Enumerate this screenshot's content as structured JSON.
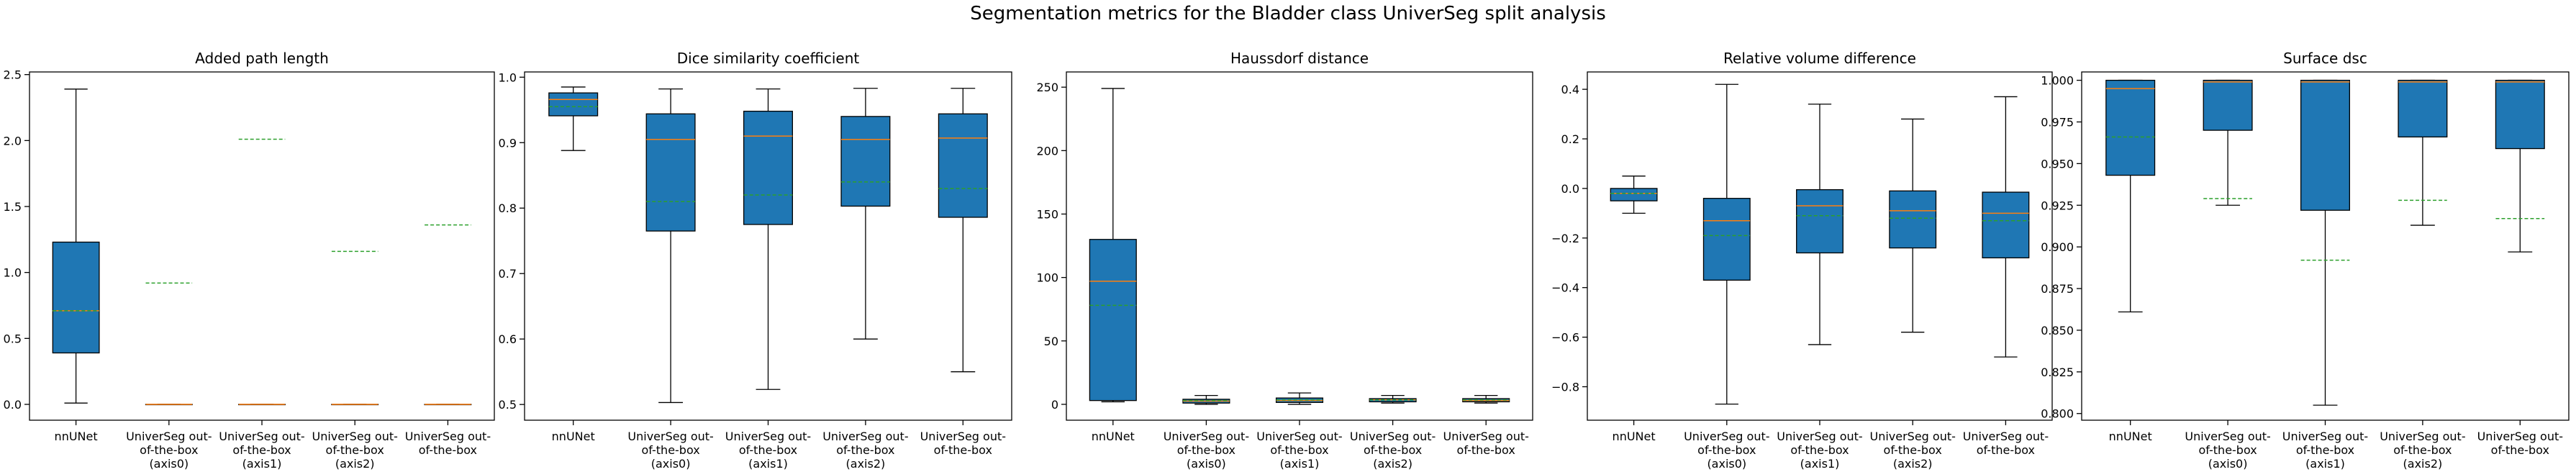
{
  "figure": {
    "title": "Segmentation metrics for the Bladder class UniverSeg split analysis",
    "box_color": "#1f77b4",
    "median_color": "#ff7f0e",
    "mean_color": "#2ca02c"
  },
  "chart_data": [
    {
      "type": "box",
      "title": "Added path length",
      "categories": [
        "nnUNet",
        "UniverSeg out-\nof-the-box\n(axis0)",
        "UniverSeg out-\nof-the-box\n(axis1)",
        "UniverSeg out-\nof-the-box\n(axis2)",
        "UniverSeg out-\nof-the-box"
      ],
      "ylim": [
        -0.12,
        2.52
      ],
      "yticks": [
        0.0,
        0.5,
        1.0,
        1.5,
        2.0,
        2.5
      ],
      "tick_labels": [
        "0.0",
        "0.5",
        "1.0",
        "1.5",
        "2.0",
        "2.5"
      ],
      "boxes": [
        {
          "whislo": 0.01,
          "q1": 0.39,
          "med": 0.71,
          "q3": 1.23,
          "whishi": 2.39,
          "mean": 0.71
        },
        {
          "whislo": 0.0,
          "q1": 0.0,
          "med": 0.0,
          "q3": 0.0,
          "whishi": 0.0,
          "mean": 0.92
        },
        {
          "whislo": 0.0,
          "q1": 0.0,
          "med": 0.0,
          "q3": 0.0,
          "whishi": 0.0,
          "mean": 2.01
        },
        {
          "whislo": 0.0,
          "q1": 0.0,
          "med": 0.0,
          "q3": 0.0,
          "whishi": 0.0,
          "mean": 1.16
        },
        {
          "whislo": 0.0,
          "q1": 0.0,
          "med": 0.0,
          "q3": 0.0,
          "whishi": 0.0,
          "mean": 1.36
        }
      ]
    },
    {
      "type": "box",
      "title": "Dice similarity coefficient",
      "categories": [
        "nnUNet",
        "UniverSeg out-\nof-the-box\n(axis0)",
        "UniverSeg out-\nof-the-box\n(axis1)",
        "UniverSeg out-\nof-the-box\n(axis2)",
        "UniverSeg out-\nof-the-box"
      ],
      "ylim": [
        0.476,
        1.008
      ],
      "yticks": [
        0.5,
        0.6,
        0.7,
        0.8,
        0.9,
        1.0
      ],
      "tick_labels": [
        "0.5",
        "0.6",
        "0.7",
        "0.8",
        "0.9",
        "1.0"
      ],
      "boxes": [
        {
          "whislo": 0.888,
          "q1": 0.941,
          "med": 0.966,
          "q3": 0.976,
          "whishi": 0.985,
          "mean": 0.955
        },
        {
          "whislo": 0.503,
          "q1": 0.765,
          "med": 0.905,
          "q3": 0.944,
          "whishi": 0.982,
          "mean": 0.81
        },
        {
          "whislo": 0.523,
          "q1": 0.775,
          "med": 0.91,
          "q3": 0.948,
          "whishi": 0.982,
          "mean": 0.82
        },
        {
          "whislo": 0.6,
          "q1": 0.803,
          "med": 0.905,
          "q3": 0.94,
          "whishi": 0.983,
          "mean": 0.84
        },
        {
          "whislo": 0.55,
          "q1": 0.786,
          "med": 0.907,
          "q3": 0.944,
          "whishi": 0.983,
          "mean": 0.83
        }
      ]
    },
    {
      "type": "box",
      "title": "Haussdorf distance",
      "categories": [
        "nnUNet",
        "UniverSeg out-\nof-the-box\n(axis0)",
        "UniverSeg out-\nof-the-box\n(axis1)",
        "UniverSeg out-\nof-the-box\n(axis2)",
        "UniverSeg out-\nof-the-box"
      ],
      "ylim": [
        -12.5,
        262
      ],
      "yticks": [
        0,
        50,
        100,
        150,
        200,
        250
      ],
      "tick_labels": [
        "0",
        "50",
        "100",
        "150",
        "200",
        "250"
      ],
      "boxes": [
        {
          "whislo": 2,
          "q1": 3,
          "med": 97,
          "q3": 130,
          "whishi": 249,
          "mean": 78
        },
        {
          "whislo": 0,
          "q1": 1,
          "med": 2.5,
          "q3": 4,
          "whishi": 7,
          "mean": 3
        },
        {
          "whislo": 0,
          "q1": 1.5,
          "med": 3,
          "q3": 5,
          "whishi": 9,
          "mean": 3.5
        },
        {
          "whislo": 1,
          "q1": 2,
          "med": 3.5,
          "q3": 4.5,
          "whishi": 7,
          "mean": 3.5
        },
        {
          "whislo": 1,
          "q1": 2,
          "med": 3,
          "q3": 4.5,
          "whishi": 7,
          "mean": 3.5
        }
      ]
    },
    {
      "type": "box",
      "title": "Relative volume difference",
      "categories": [
        "nnUNet",
        "UniverSeg out-\nof-the-box\n(axis0)",
        "UniverSeg out-\nof-the-box\n(axis1)",
        "UniverSeg out-\nof-the-box\n(axis2)",
        "UniverSeg out-\nof-the-box"
      ],
      "ylim": [
        -0.935,
        0.47
      ],
      "yticks": [
        -0.8,
        -0.6,
        -0.4,
        -0.2,
        0.0,
        0.2,
        0.4
      ],
      "tick_labels": [
        "−0.8",
        "−0.6",
        "−0.4",
        "−0.2",
        "0.0",
        "0.2",
        "0.4"
      ],
      "boxes": [
        {
          "whislo": -0.1,
          "q1": -0.05,
          "med": -0.02,
          "q3": 0.0,
          "whishi": 0.05,
          "mean": -0.02
        },
        {
          "whislo": -0.87,
          "q1": -0.37,
          "med": -0.13,
          "q3": -0.04,
          "whishi": 0.42,
          "mean": -0.19
        },
        {
          "whislo": -0.63,
          "q1": -0.26,
          "med": -0.07,
          "q3": -0.005,
          "whishi": 0.34,
          "mean": -0.11
        },
        {
          "whislo": -0.58,
          "q1": -0.24,
          "med": -0.09,
          "q3": -0.01,
          "whishi": 0.28,
          "mean": -0.12
        },
        {
          "whislo": -0.68,
          "q1": -0.28,
          "med": -0.1,
          "q3": -0.015,
          "whishi": 0.37,
          "mean": -0.13
        }
      ]
    },
    {
      "type": "box",
      "title": "Surface dsc",
      "categories": [
        "nnUNet",
        "UniverSeg out-\nof-the-box\n(axis0)",
        "UniverSeg out-\nof-the-box\n(axis1)",
        "UniverSeg out-\nof-the-box\n(axis2)",
        "UniverSeg out-\nof-the-box"
      ],
      "ylim": [
        0.796,
        1.005
      ],
      "yticks": [
        0.8,
        0.825,
        0.85,
        0.875,
        0.9,
        0.925,
        0.95,
        0.975,
        1.0
      ],
      "tick_labels": [
        "0.800",
        "0.825",
        "0.850",
        "0.875",
        "0.900",
        "0.925",
        "0.950",
        "0.975",
        "1.000"
      ],
      "boxes": [
        {
          "whislo": 0.861,
          "q1": 0.943,
          "med": 0.995,
          "q3": 1.0,
          "whishi": 1.0,
          "mean": 0.966
        },
        {
          "whislo": 0.925,
          "q1": 0.97,
          "med": 0.999,
          "q3": 1.0,
          "whishi": 1.0,
          "mean": 0.929
        },
        {
          "whislo": 0.805,
          "q1": 0.922,
          "med": 0.999,
          "q3": 1.0,
          "whishi": 1.0,
          "mean": 0.892
        },
        {
          "whislo": 0.913,
          "q1": 0.966,
          "med": 0.999,
          "q3": 1.0,
          "whishi": 1.0,
          "mean": 0.928
        },
        {
          "whislo": 0.897,
          "q1": 0.959,
          "med": 0.999,
          "q3": 1.0,
          "whishi": 1.0,
          "mean": 0.917
        }
      ]
    }
  ]
}
